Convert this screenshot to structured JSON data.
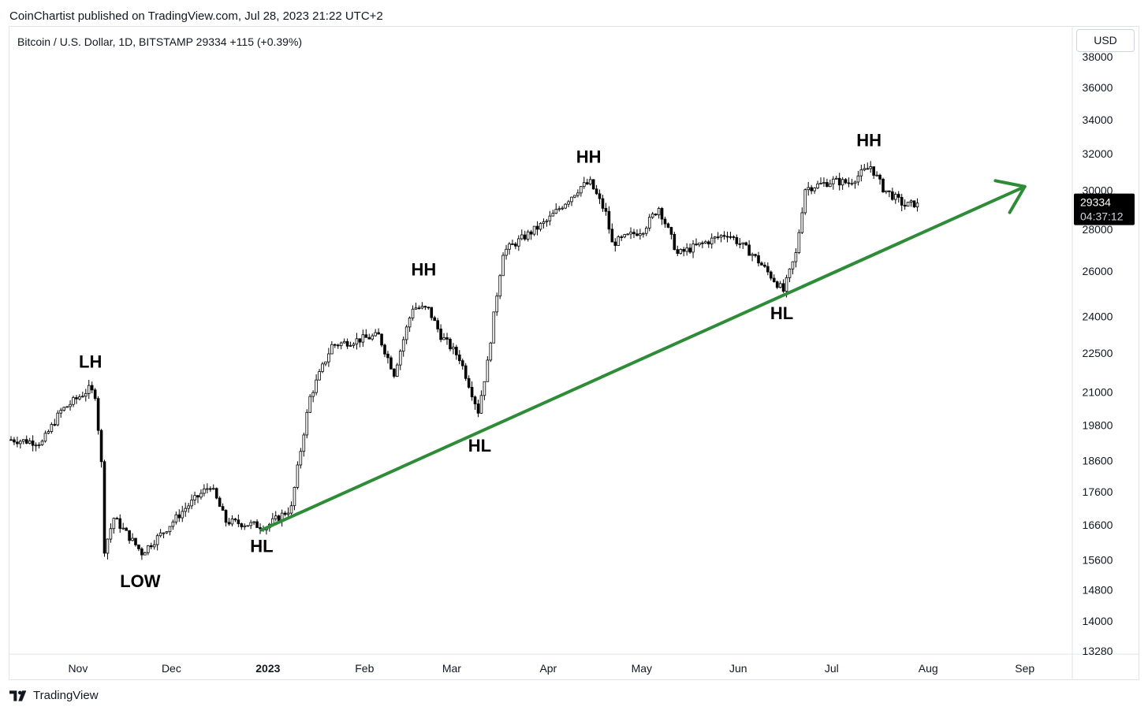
{
  "header": {
    "published": "CoinChartist published on TradingView.com, Jul 28, 2023 21:22 UTC+2"
  },
  "symbol": {
    "line": "Bitcoin / U.S. Dollar, 1D, BITSTAMP  29334  +115 (+0.39%)"
  },
  "currency_button": "USD",
  "price_badge": {
    "price": "29334",
    "countdown": "04:37:12"
  },
  "footer": {
    "brand": "TradingView"
  },
  "colors": {
    "trendline": "#2e8b37",
    "candle": "#000000",
    "badge_bg": "#000000"
  },
  "chart_data": {
    "type": "candlestick",
    "title": "Bitcoin / U.S. Dollar, 1D, BITSTAMP",
    "y_scale": "log",
    "ylim": [
      13280,
      38000
    ],
    "y_ticks": [
      "38000",
      "36000",
      "34000",
      "32000",
      "30000",
      "28000",
      "26000",
      "24000",
      "22500",
      "21000",
      "19800",
      "18600",
      "17600",
      "16600",
      "15600",
      "14800",
      "14000",
      "13280"
    ],
    "x_ticks": [
      {
        "label": "Nov",
        "date": "2022-11-01",
        "bold": false
      },
      {
        "label": "Dec",
        "date": "2022-12-01",
        "bold": false
      },
      {
        "label": "2023",
        "date": "2023-01-01",
        "bold": true
      },
      {
        "label": "Feb",
        "date": "2023-02-01",
        "bold": false
      },
      {
        "label": "Mar",
        "date": "2023-03-01",
        "bold": false
      },
      {
        "label": "Apr",
        "date": "2023-04-01",
        "bold": false
      },
      {
        "label": "May",
        "date": "2023-05-01",
        "bold": false
      },
      {
        "label": "Jun",
        "date": "2023-06-01",
        "bold": false
      },
      {
        "label": "Jul",
        "date": "2023-07-01",
        "bold": false
      },
      {
        "label": "Aug",
        "date": "2023-08-01",
        "bold": false
      },
      {
        "label": "Sep",
        "date": "2023-09-01",
        "bold": false
      }
    ],
    "x_start": "2022-10-10",
    "price_path": [
      [
        "2022-10-10",
        19300
      ],
      [
        "2022-10-20",
        19200
      ],
      [
        "2022-10-26",
        20300
      ],
      [
        "2022-11-04",
        21100
      ],
      [
        "2022-11-06",
        20900
      ],
      [
        "2022-11-08",
        18500
      ],
      [
        "2022-11-09",
        15900
      ],
      [
        "2022-11-12",
        16800
      ],
      [
        "2022-11-21",
        15800
      ],
      [
        "2022-11-28",
        16400
      ],
      [
        "2022-12-05",
        17100
      ],
      [
        "2022-12-13",
        17800
      ],
      [
        "2022-12-18",
        16700
      ],
      [
        "2022-12-31",
        16550
      ],
      [
        "2023-01-08",
        17100
      ],
      [
        "2023-01-14",
        20800
      ],
      [
        "2023-01-21",
        22800
      ],
      [
        "2023-02-01",
        23100
      ],
      [
        "2023-02-05",
        23200
      ],
      [
        "2023-02-10",
        21700
      ],
      [
        "2023-02-16",
        24400
      ],
      [
        "2023-02-21",
        24300
      ],
      [
        "2023-02-25",
        23200
      ],
      [
        "2023-03-03",
        22300
      ],
      [
        "2023-03-09",
        20300
      ],
      [
        "2023-03-12",
        22100
      ],
      [
        "2023-03-17",
        26900
      ],
      [
        "2023-03-31",
        28400
      ],
      [
        "2023-04-11",
        30200
      ],
      [
        "2023-04-14",
        30400
      ],
      [
        "2023-04-19",
        28800
      ],
      [
        "2023-04-21",
        27300
      ],
      [
        "2023-05-01",
        28000
      ],
      [
        "2023-05-06",
        29100
      ],
      [
        "2023-05-12",
        26800
      ],
      [
        "2023-05-28",
        27800
      ],
      [
        "2023-06-05",
        26800
      ],
      [
        "2023-06-15",
        25100
      ],
      [
        "2023-06-19",
        26800
      ],
      [
        "2023-06-22",
        30100
      ],
      [
        "2023-07-01",
        30500
      ],
      [
        "2023-07-06",
        30400
      ],
      [
        "2023-07-13",
        31300
      ],
      [
        "2023-07-17",
        30100
      ],
      [
        "2023-07-24",
        29200
      ],
      [
        "2023-07-28",
        29334
      ]
    ],
    "annotations": [
      {
        "label": "LH",
        "date": "2022-11-05",
        "price": 21500,
        "position": "above"
      },
      {
        "label": "LOW",
        "date": "2022-11-21",
        "price": 15500,
        "position": "below"
      },
      {
        "label": "HL",
        "date": "2022-12-30",
        "price": 16500,
        "position": "below"
      },
      {
        "label": "HH",
        "date": "2023-02-20",
        "price": 25300,
        "position": "above"
      },
      {
        "label": "HL",
        "date": "2023-03-10",
        "price": 19700,
        "position": "below"
      },
      {
        "label": "HH",
        "date": "2023-04-14",
        "price": 30900,
        "position": "above"
      },
      {
        "label": "HL",
        "date": "2023-06-15",
        "price": 24900,
        "position": "below"
      },
      {
        "label": "HH",
        "date": "2023-07-13",
        "price": 31800,
        "position": "above"
      }
    ],
    "trendline": {
      "from": {
        "date": "2022-12-30",
        "price": 16450
      },
      "to": {
        "date": "2023-09-01",
        "price": 30200
      },
      "arrowhead": true
    },
    "last_price": 29334
  }
}
